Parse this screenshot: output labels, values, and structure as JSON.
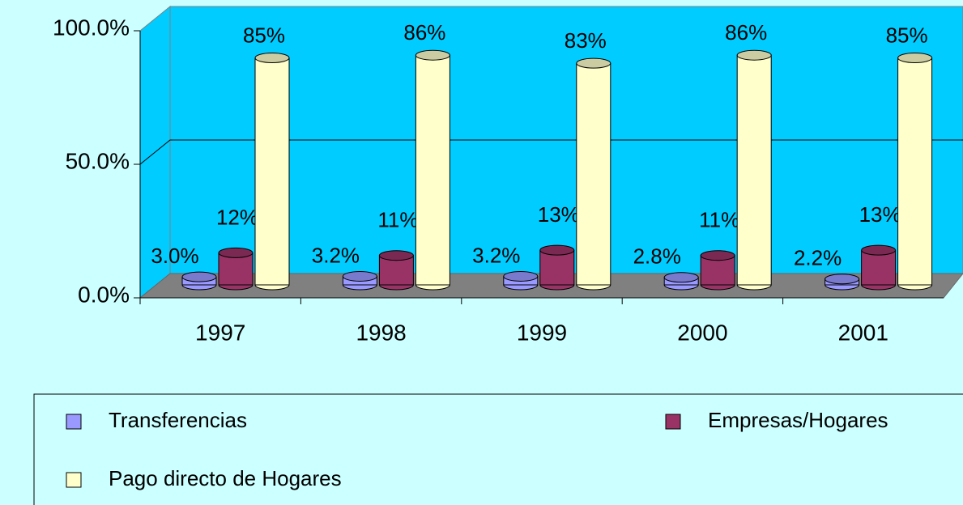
{
  "chart_data": {
    "type": "bar",
    "categories": [
      "1997",
      "1998",
      "1999",
      "2000",
      "2001"
    ],
    "series": [
      {
        "name": "Transferencias",
        "color": "#9999ff",
        "values": [
          3.0,
          3.2,
          3.2,
          2.8,
          2.2
        ],
        "value_labels": [
          "3.0%",
          "3.2%",
          "3.2%",
          "2.8%",
          "2.2%"
        ]
      },
      {
        "name": "Empresas/Hogares",
        "color": "#993366",
        "values": [
          12,
          11,
          13,
          11,
          13
        ],
        "value_labels": [
          "12%",
          "11%",
          "13%",
          "11%",
          "13%"
        ]
      },
      {
        "name": "Pago directo de Hogares",
        "color": "#ffffcc",
        "values": [
          85,
          86,
          83,
          86,
          85
        ],
        "value_labels": [
          "85%",
          "86%",
          "83%",
          "86%",
          "85%"
        ]
      }
    ],
    "ylim": [
      0,
      100
    ],
    "yticks": [
      {
        "value": 0,
        "label": "0.0%"
      },
      {
        "value": 50,
        "label": "50.0%"
      },
      {
        "value": 100,
        "label": "100.0%"
      }
    ],
    "grid": true
  }
}
